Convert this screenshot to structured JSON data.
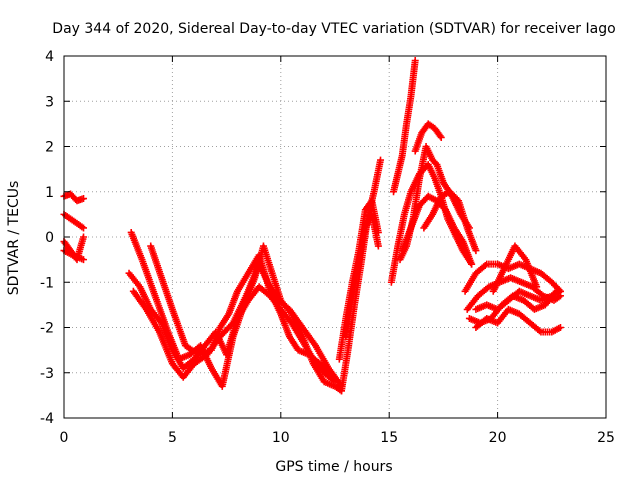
{
  "chart_data": {
    "type": "scatter",
    "title": "Day 344 of 2020, Sidereal Day-to-day VTEC variation (SDTVAR) for receiver Iago",
    "xlabel": "GPS time / hours",
    "ylabel": "SDTVAR / TECUs",
    "xlim": [
      0,
      25
    ],
    "ylim": [
      -4,
      4
    ],
    "xticks": [
      0,
      5,
      10,
      15,
      20,
      25
    ],
    "yticks": [
      -4,
      -3,
      -2,
      -1,
      0,
      1,
      2,
      3,
      4
    ],
    "grid": true,
    "marker": "+",
    "color": "#ff0000",
    "series": [
      {
        "x": [
          0.0,
          0.3,
          0.6,
          0.9
        ],
        "y": [
          0.9,
          0.95,
          0.8,
          0.85
        ]
      },
      {
        "x": [
          0.0,
          0.3,
          0.6,
          0.9
        ],
        "y": [
          0.5,
          0.4,
          0.3,
          0.2
        ]
      },
      {
        "x": [
          0.0,
          0.3,
          0.6,
          0.9
        ],
        "y": [
          -0.1,
          -0.3,
          -0.5,
          0.0
        ]
      },
      {
        "x": [
          0.0,
          0.4,
          0.9
        ],
        "y": [
          -0.3,
          -0.4,
          -0.5
        ]
      },
      {
        "x": [
          3.1,
          3.6,
          4.2,
          4.8,
          5.3,
          5.8,
          6.3,
          6.8,
          7.3,
          7.8,
          8.3,
          8.8,
          9.2,
          9.6,
          10.0,
          10.5,
          11.0,
          11.5,
          12.0,
          12.5,
          12.8
        ],
        "y": [
          0.1,
          -0.5,
          -1.3,
          -2.1,
          -2.7,
          -2.6,
          -2.4,
          -2.9,
          -3.3,
          -2.2,
          -1.5,
          -0.9,
          -0.2,
          -0.8,
          -1.4,
          -1.7,
          -2.2,
          -2.8,
          -3.2,
          -3.3,
          -3.4
        ]
      },
      {
        "x": [
          3.0,
          3.5,
          4.0,
          4.5,
          5.0,
          5.5,
          6.0,
          6.5,
          7.0,
          7.5,
          8.0,
          8.5,
          9.0,
          9.5,
          10.0,
          10.5,
          11.0,
          11.5,
          12.0,
          12.5
        ],
        "y": [
          -0.8,
          -1.1,
          -1.6,
          -1.9,
          -2.5,
          -2.9,
          -2.7,
          -2.4,
          -2.1,
          -2.6,
          -1.8,
          -1.4,
          -1.1,
          -1.3,
          -1.6,
          -1.9,
          -2.3,
          -2.7,
          -3.0,
          -3.2
        ]
      },
      {
        "x": [
          3.2,
          3.8,
          4.4,
          5.0,
          5.5,
          6.0,
          6.6,
          7.2,
          7.8,
          8.4,
          9.0,
          9.4,
          9.9,
          10.4,
          11.0,
          11.6,
          12.2,
          12.8
        ],
        "y": [
          -1.2,
          -1.6,
          -2.1,
          -2.8,
          -3.1,
          -2.8,
          -2.6,
          -2.2,
          -1.9,
          -1.3,
          -0.6,
          -1.0,
          -1.4,
          -1.6,
          -2.0,
          -2.4,
          -2.9,
          -3.3
        ]
      },
      {
        "x": [
          4.0,
          4.5,
          5.0,
          5.6,
          6.2,
          6.8,
          7.2,
          7.6,
          8.0,
          8.5,
          9.0,
          9.5,
          10.0,
          10.4,
          10.8,
          11.3,
          11.8,
          12.4
        ],
        "y": [
          -0.2,
          -0.9,
          -1.6,
          -2.4,
          -2.6,
          -2.5,
          -2.0,
          -1.7,
          -1.2,
          -0.8,
          -0.4,
          -1.2,
          -1.7,
          -2.2,
          -2.5,
          -2.6,
          -2.8,
          -3.1
        ]
      },
      {
        "x": [
          12.8,
          13.1,
          13.4,
          13.7,
          14.0,
          14.3,
          14.6
        ],
        "y": [
          -3.4,
          -2.5,
          -1.5,
          -0.6,
          0.4,
          1.0,
          1.7
        ]
      },
      {
        "x": [
          12.7,
          13.0,
          13.3,
          13.6,
          13.9,
          14.2,
          14.5
        ],
        "y": [
          -2.7,
          -1.8,
          -1.0,
          -0.3,
          0.6,
          0.8,
          0.1
        ]
      },
      {
        "x": [
          13.0,
          13.3,
          13.6,
          13.9,
          14.2,
          14.5
        ],
        "y": [
          -2.2,
          -1.4,
          -0.6,
          0.2,
          0.5,
          -0.2
        ]
      },
      {
        "x": [
          15.2,
          15.4,
          15.6,
          15.8,
          16.0,
          16.2
        ],
        "y": [
          1.0,
          1.4,
          1.8,
          2.5,
          3.1,
          3.9
        ]
      },
      {
        "x": [
          15.1,
          15.4,
          15.7,
          16.0,
          16.4,
          16.8,
          17.1,
          17.4,
          17.7,
          18.0,
          18.4,
          18.8
        ],
        "y": [
          -1.0,
          -0.2,
          0.5,
          1.0,
          1.4,
          1.6,
          1.3,
          0.9,
          0.4,
          0.1,
          -0.3,
          -0.6
        ]
      },
      {
        "x": [
          15.5,
          15.8,
          16.1,
          16.4,
          16.7,
          17.0,
          17.2,
          17.5,
          17.9,
          18.3,
          18.7
        ],
        "y": [
          -0.5,
          -0.2,
          0.4,
          1.3,
          2.0,
          1.7,
          1.6,
          1.2,
          0.9,
          0.5,
          0.2
        ]
      },
      {
        "x": [
          16.2,
          16.5,
          16.8,
          17.1,
          17.4
        ],
        "y": [
          1.9,
          2.3,
          2.5,
          2.4,
          2.2
        ]
      },
      {
        "x": [
          15.6,
          16.0,
          16.4,
          16.8,
          17.2,
          17.6,
          18.0,
          18.4,
          18.8
        ],
        "y": [
          -0.3,
          0.2,
          0.7,
          0.9,
          0.8,
          0.6,
          0.2,
          -0.1,
          -0.6
        ]
      },
      {
        "x": [
          16.6,
          17.0,
          17.4,
          17.8,
          18.2,
          18.6,
          19.0
        ],
        "y": [
          0.2,
          0.5,
          0.9,
          1.0,
          0.8,
          0.2,
          -0.3
        ]
      },
      {
        "x": [
          18.5,
          19.0,
          19.5,
          20.0,
          20.5,
          21.0,
          21.5,
          22.0,
          22.5,
          22.9
        ],
        "y": [
          -1.2,
          -0.8,
          -0.6,
          -0.6,
          -0.7,
          -0.6,
          -0.7,
          -0.8,
          -1.0,
          -1.2
        ]
      },
      {
        "x": [
          18.6,
          19.1,
          19.6,
          20.1,
          20.6,
          21.1,
          21.6,
          22.1,
          22.6,
          22.9
        ],
        "y": [
          -1.6,
          -1.3,
          -1.1,
          -1.0,
          -0.9,
          -1.0,
          -1.1,
          -1.3,
          -1.4,
          -1.3
        ]
      },
      {
        "x": [
          18.7,
          19.2,
          19.7,
          20.2,
          20.7,
          21.2,
          21.7,
          22.2,
          22.7
        ],
        "y": [
          -1.8,
          -1.9,
          -1.8,
          -1.5,
          -1.3,
          -1.4,
          -1.6,
          -1.5,
          -1.2
        ]
      },
      {
        "x": [
          19.0,
          19.5,
          20.0,
          20.5,
          21.0,
          21.5,
          22.0,
          22.5,
          22.9
        ],
        "y": [
          -1.6,
          -1.5,
          -1.6,
          -1.4,
          -1.2,
          -1.3,
          -1.4,
          -1.3,
          -1.2
        ]
      },
      {
        "x": [
          19.0,
          19.5,
          20.0,
          20.5,
          21.0,
          21.5,
          22.0,
          22.5,
          22.9
        ],
        "y": [
          -2.0,
          -1.8,
          -1.9,
          -1.6,
          -1.7,
          -1.9,
          -2.1,
          -2.1,
          -2.0
        ]
      },
      {
        "x": [
          19.8,
          20.3,
          20.8,
          21.3,
          21.8
        ],
        "y": [
          -1.2,
          -0.7,
          -0.2,
          -0.5,
          -1.1
        ]
      }
    ]
  }
}
